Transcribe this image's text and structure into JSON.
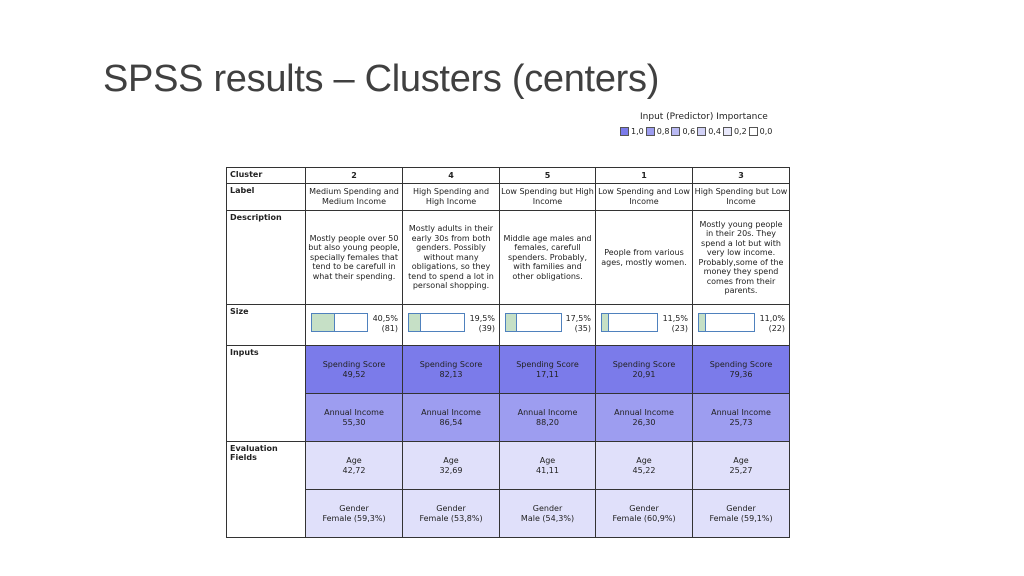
{
  "slide": {
    "title": "SPSS results – Clusters (centers)"
  },
  "importance": {
    "caption": "Input (Predictor) Importance",
    "legend": [
      {
        "label": "1,0",
        "color": "#7b7bea"
      },
      {
        "label": "0,8",
        "color": "#9d9df0"
      },
      {
        "label": "0,6",
        "color": "#b9b9f3"
      },
      {
        "label": "0,4",
        "color": "#d2d2f7"
      },
      {
        "label": "0,2",
        "color": "#e8e8fb"
      },
      {
        "label": "0,0",
        "color": "#ffffff"
      }
    ]
  },
  "table": {
    "headers": {
      "cluster": "Cluster",
      "label": "Label",
      "description": "Description",
      "size": "Size",
      "inputs": "Inputs",
      "evaluation": "Evaluation Fields"
    },
    "clusters": [
      {
        "id": "2",
        "label": "Medium Spending and Medium Income",
        "description": "Mostly people over 50 but also young people, specially females that tend to be carefull in what their spending.",
        "size_pct": "40,5%",
        "size_n": "(81)",
        "size_fraction": 0.405,
        "spending": "Spending Score",
        "spending_val": "49,52",
        "income": "Annual Income",
        "income_val": "55,30",
        "age": "Age",
        "age_val": "42,72",
        "gender": "Gender",
        "gender_val": "Female (59,3%)"
      },
      {
        "id": "4",
        "label": "High Spending and High Income",
        "description": "Mostly adults in their early 30s from both genders. Possibly without many obligations, so they tend to spend a lot in personal shopping.",
        "size_pct": "19,5%",
        "size_n": "(39)",
        "size_fraction": 0.195,
        "spending": "Spending Score",
        "spending_val": "82,13",
        "income": "Annual Income",
        "income_val": "86,54",
        "age": "Age",
        "age_val": "32,69",
        "gender": "Gender",
        "gender_val": "Female (53,8%)"
      },
      {
        "id": "5",
        "label": "Low Spending but High Income",
        "description": "Middle age males and females, carefull spenders. Probably, with families and other obligations.",
        "size_pct": "17,5%",
        "size_n": "(35)",
        "size_fraction": 0.175,
        "spending": "Spending Score",
        "spending_val": "17,11",
        "income": "Annual Income",
        "income_val": "88,20",
        "age": "Age",
        "age_val": "41,11",
        "gender": "Gender",
        "gender_val": "Male (54,3%)"
      },
      {
        "id": "1",
        "label": "Low Spending and Low Income",
        "description": "People from various ages, mostly women.",
        "size_pct": "11,5%",
        "size_n": "(23)",
        "size_fraction": 0.115,
        "spending": "Spending Score",
        "spending_val": "20,91",
        "income": "Annual Income",
        "income_val": "26,30",
        "age": "Age",
        "age_val": "45,22",
        "gender": "Gender",
        "gender_val": "Female (60,9%)"
      },
      {
        "id": "3",
        "label": "High Spending but Low Income",
        "description": "Mostly young people in their 20s. They spend a lot but with very low income. Probably,some of the money they spend comes from their parents.",
        "size_pct": "11,0%",
        "size_n": "(22)",
        "size_fraction": 0.11,
        "spending": "Spending Score",
        "spending_val": "79,36",
        "income": "Annual Income",
        "income_val": "25,73",
        "age": "Age",
        "age_val": "25,27",
        "gender": "Gender",
        "gender_val": "Female (59,1%)"
      }
    ]
  }
}
